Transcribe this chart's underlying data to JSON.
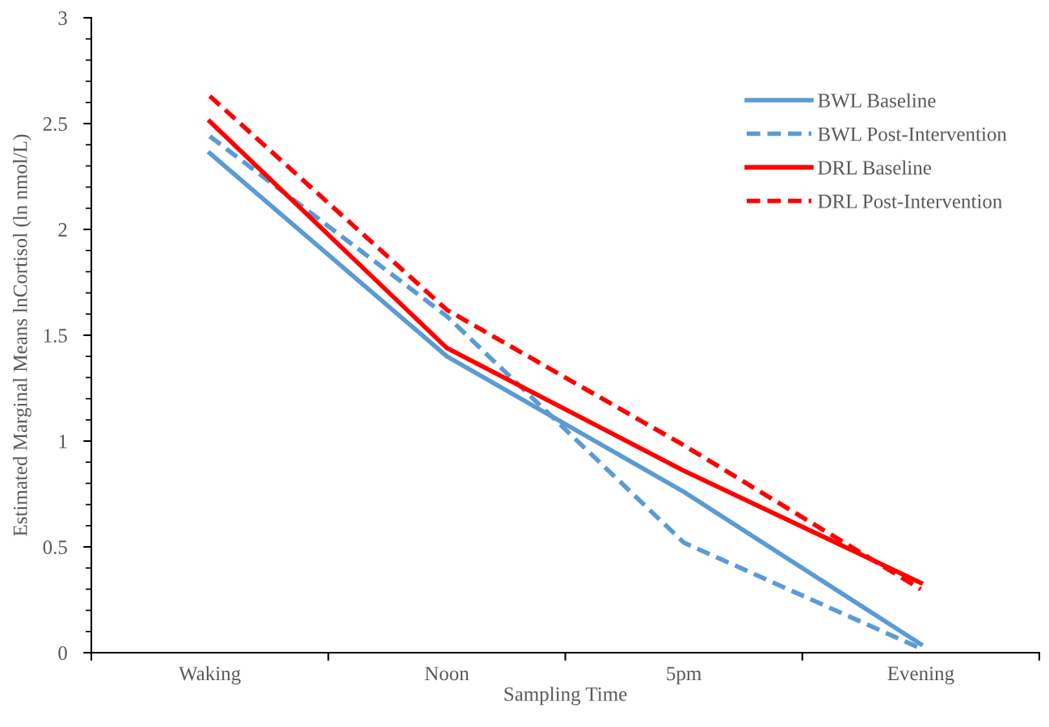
{
  "chart_data": {
    "type": "line",
    "xlabel": "Sampling Time",
    "ylabel": "Estimated Marginal Means lnCortisol (ln nmol/L)",
    "categories": [
      "Waking",
      "Noon",
      "5pm",
      "Evening"
    ],
    "series": [
      {
        "name": "BWL Baseline",
        "color": "#5b9bd5",
        "line_style": "solid",
        "values": [
          2.36,
          1.4,
          0.76,
          0.04
        ]
      },
      {
        "name": "BWL Post-Intervention",
        "color": "#5b9bd5",
        "line_style": "dashed",
        "values": [
          2.44,
          1.59,
          0.52,
          0.02
        ]
      },
      {
        "name": "DRL Baseline",
        "color": "#ff0000",
        "line_style": "solid",
        "values": [
          2.51,
          1.44,
          0.86,
          0.33
        ]
      },
      {
        "name": "DRL Post-Intervention",
        "color": "#ff0000",
        "line_style": "dashed",
        "values": [
          2.63,
          1.62,
          0.98,
          0.3
        ]
      }
    ],
    "ylim": [
      0,
      3
    ],
    "yticks": [
      0,
      0.5,
      1,
      1.5,
      2,
      2.5,
      3
    ],
    "grid": false,
    "legend": "top right",
    "marker": "none"
  }
}
